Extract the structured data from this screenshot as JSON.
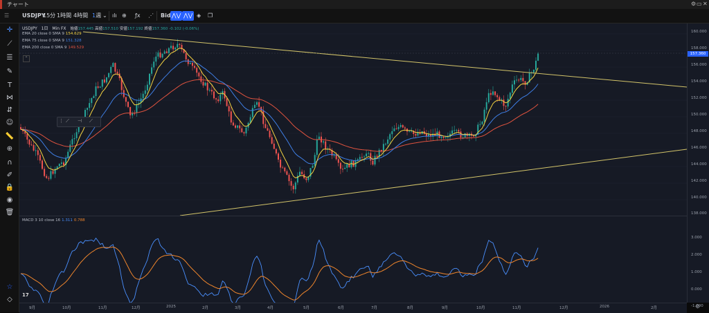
{
  "window": {
    "title": "チャート"
  },
  "toolbar": {
    "symbol": "USDJPY",
    "intervals": [
      "15分",
      "1時間",
      "4時間"
    ],
    "selected_interval": "週",
    "bid_label": "Bid"
  },
  "header": {
    "symbol": "USDJPY",
    "interval": "1日",
    "source": "Min FX",
    "open_label": "始値",
    "open": "157.445",
    "high_label": "高値",
    "high": "157.510",
    "low_label": "安値",
    "low": "157.192",
    "close_label": "終値",
    "close": "157.360",
    "change": "-0.102 (-0.06%)"
  },
  "indicators": [
    {
      "label": "EMA 20 close 0 SMA 9",
      "value": "154.629",
      "color": "#f5d442"
    },
    {
      "label": "EMA 75 close 0 SMA 9",
      "value": "151.328",
      "color": "#3f7fe6"
    },
    {
      "label": "EMA 200 close 0 SMA 9",
      "value": "149.529",
      "color": "#e0533f"
    }
  ],
  "macd": {
    "label": "MACD 3 10 close 16",
    "value_macd": "1.311",
    "value_signal": "0.788",
    "macd_color": "#4a90ff",
    "signal_color": "#f0862c"
  },
  "price_axis": [
    "160.000",
    "158.000",
    "156.000",
    "154.000",
    "152.000",
    "150.000",
    "148.000",
    "146.000",
    "144.000",
    "142.000",
    "140.000",
    "138.000"
  ],
  "current_price": "157.360",
  "macd_axis": [
    "3.000",
    "2.000",
    "1.000",
    "0.000",
    "-1.000"
  ],
  "time_axis": [
    "9月",
    "10月",
    "11月",
    "12月",
    "2025",
    "2月",
    "3月",
    "4月",
    "5月",
    "6月",
    "7月",
    "8月",
    "9月",
    "10月",
    "11月",
    "12月",
    "2026",
    "2月"
  ],
  "colors": {
    "up": "#26a69a",
    "down": "#ef5350",
    "background": "#161a25",
    "trendline": "#d4c56a",
    "accent": "#2962ff"
  }
}
